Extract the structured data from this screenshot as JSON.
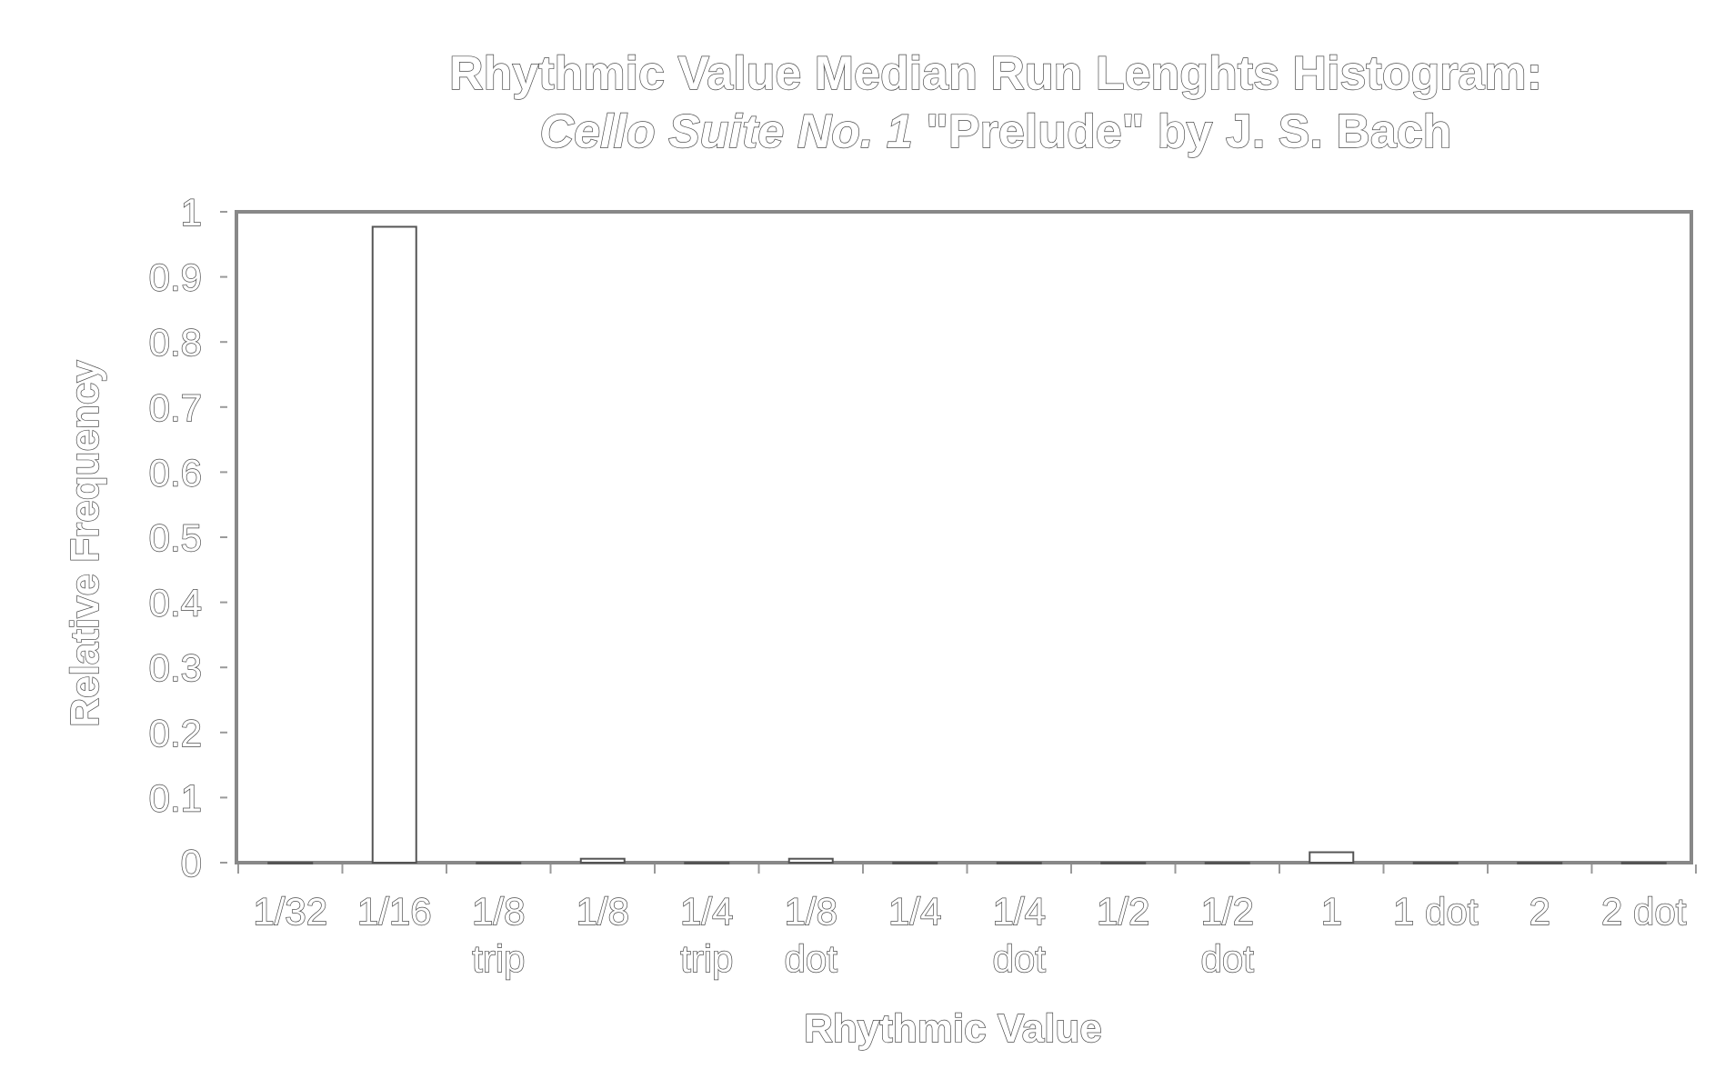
{
  "chart_data": {
    "type": "bar",
    "title": "Rhythmic Value Median Run Lenghts Histogram:",
    "subtitle": {
      "italic_part": "Cello Suite No. 1",
      "regular_part": " \"Prelude\" by J. S. Bach"
    },
    "xlabel": "Rhythmic Value",
    "ylabel": "Relative Frequency",
    "ylim": [
      0,
      1
    ],
    "yticks": [
      "0",
      "0.1",
      "0.2",
      "0.3",
      "0.4",
      "0.5",
      "0.6",
      "0.7",
      "0.8",
      "0.9",
      "1"
    ],
    "categories": [
      [
        "1/32"
      ],
      [
        "1/16"
      ],
      [
        "1/8",
        "trip"
      ],
      [
        "1/8"
      ],
      [
        "1/4",
        "trip"
      ],
      [
        "1/8",
        "dot"
      ],
      [
        "1/4"
      ],
      [
        "1/4",
        "dot"
      ],
      [
        "1/2"
      ],
      [
        "1/2",
        "dot"
      ],
      [
        "1"
      ],
      [
        "1 dot"
      ],
      [
        "2"
      ],
      [
        "2 dot"
      ]
    ],
    "values": [
      0,
      0.977,
      0,
      0.006,
      0,
      0.006,
      0,
      0,
      0,
      0,
      0.016,
      0,
      0,
      0
    ],
    "grid": false,
    "legend": "none"
  }
}
